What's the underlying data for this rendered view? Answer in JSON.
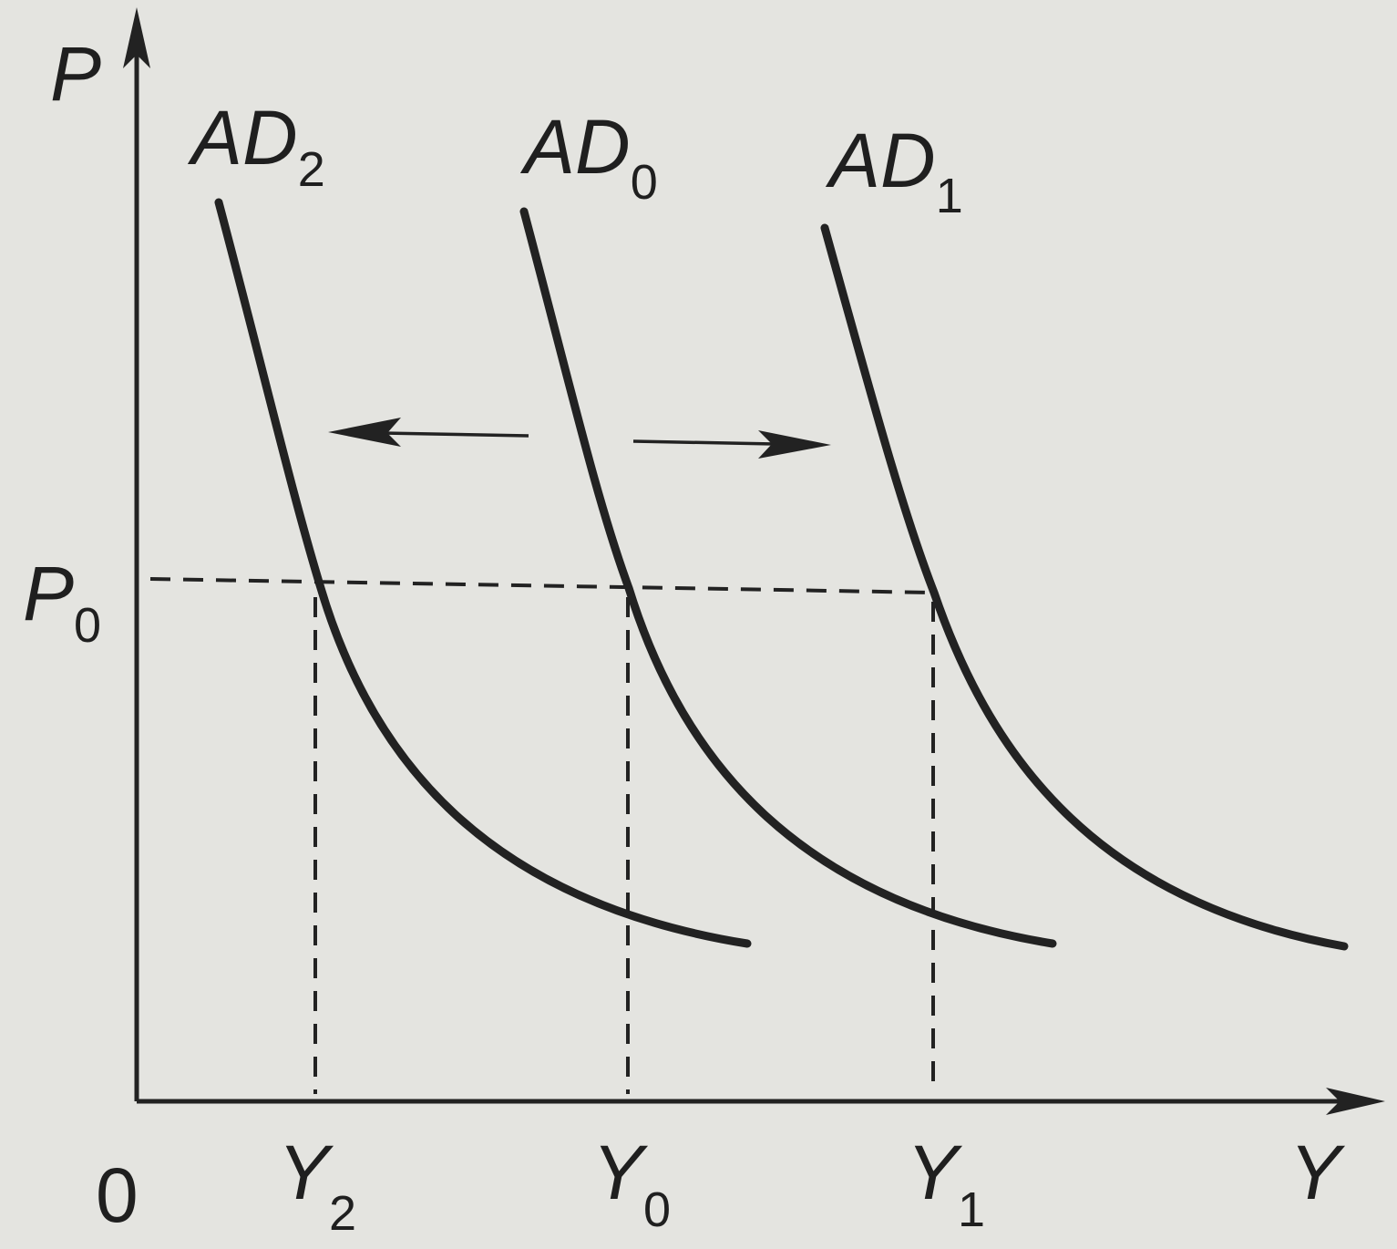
{
  "axes": {
    "y_label": "P",
    "x_label": "Y",
    "origin": "0"
  },
  "curves": [
    {
      "label": {
        "main": "AD",
        "sub": "2"
      }
    },
    {
      "label": {
        "main": "AD",
        "sub": "0"
      }
    },
    {
      "label": {
        "main": "AD",
        "sub": "1"
      }
    }
  ],
  "price_level": {
    "main": "P",
    "sub": "0"
  },
  "outputs": [
    {
      "main": "Y",
      "sub": "2"
    },
    {
      "main": "Y",
      "sub": "0"
    },
    {
      "main": "Y",
      "sub": "1"
    }
  ]
}
